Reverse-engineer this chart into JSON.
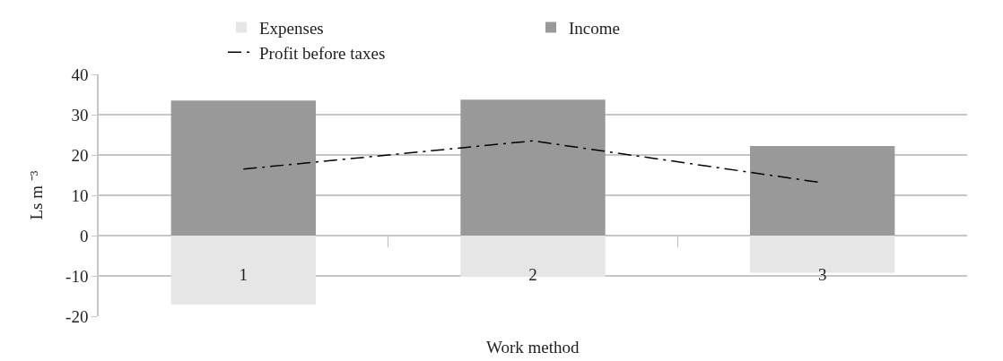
{
  "chart_data": {
    "type": "bar",
    "xlabel": "Work method",
    "ylabel": "Ls m ⁻³",
    "categories": [
      "1",
      "2",
      "3"
    ],
    "stacked": true,
    "series": [
      {
        "name": "Expenses",
        "color": "#e5e6e5",
        "values": [
          -17.1,
          -10.2,
          -9.2
        ]
      },
      {
        "name": "Income",
        "color": "#989998",
        "values": [
          33.5,
          33.7,
          22.2
        ]
      },
      {
        "name": "Profit before taxes",
        "type": "line",
        "color": "#000000",
        "line_style": "dashed",
        "marker": "none",
        "values": [
          16.5,
          23.5,
          13.1
        ]
      }
    ],
    "ylim": [
      -20,
      40
    ],
    "yticks": [
      -20,
      -10,
      0,
      10,
      20,
      30,
      40
    ],
    "grid": "y",
    "legend": "top"
  }
}
